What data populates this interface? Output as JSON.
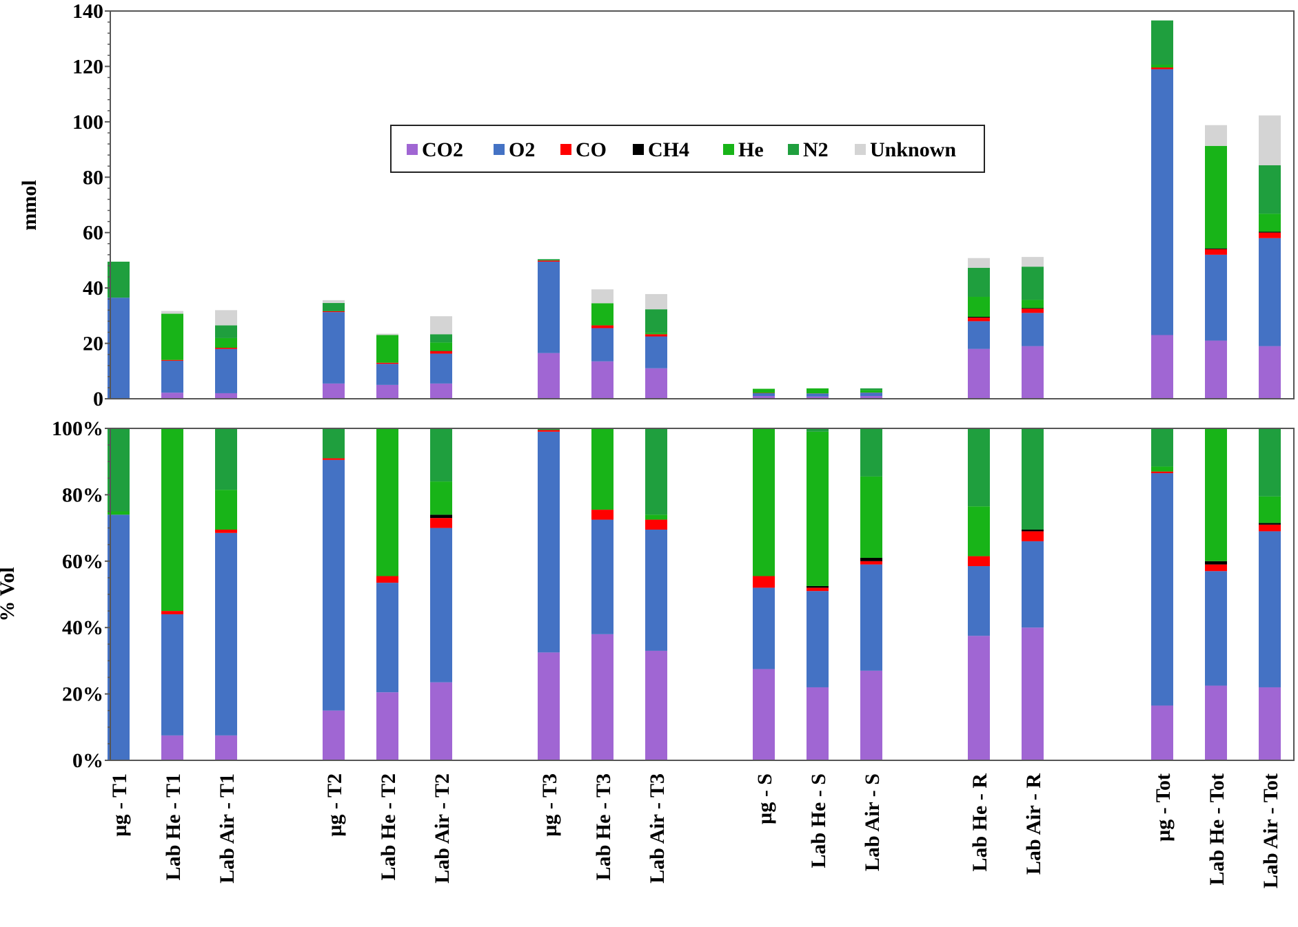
{
  "chart_data": [
    {
      "type": "bar",
      "stacked": true,
      "ylabel": "mmol",
      "ylim": [
        0,
        140
      ],
      "yticks": [
        "0",
        "20",
        "40",
        "60",
        "80",
        "100",
        "120",
        "140"
      ],
      "categories": [
        "µg  - T1",
        "Lab He  - T1",
        "Lab Air  - T1",
        "µg  - T2",
        "Lab He  - T2",
        "Lab Air  - T2",
        "µg  - T3",
        "Lab He  - T3",
        "Lab Air  - T3",
        "µg  - S",
        "Lab He  - S",
        "Lab Air  - S",
        "Lab He  - R",
        "Lab Air  - R",
        "µg - Tot",
        "Lab He - Tot",
        "Lab Air - Tot"
      ],
      "legend": {
        "position": "top-center"
      },
      "series": [
        {
          "name": "CO2",
          "color": "#a066d3",
          "values": [
            0,
            2.2,
            2,
            5.5,
            5,
            5.5,
            16.5,
            13.5,
            11,
            1,
            0.8,
            1,
            18,
            19,
            23,
            21,
            19
          ]
        },
        {
          "name": "O2",
          "color": "#4472c4",
          "values": [
            36.5,
            11.5,
            16,
            25.8,
            7.6,
            10.8,
            33,
            12,
            11.5,
            1,
            1.1,
            1.2,
            10,
            12,
            96,
            31,
            39
          ]
        },
        {
          "name": "CO",
          "color": "#ff0000",
          "values": [
            0,
            0.3,
            0.4,
            0.3,
            0.4,
            0.9,
            0.4,
            1,
            0.8,
            0.1,
            0.05,
            0.05,
            1.3,
            1.5,
            0.6,
            2,
            2
          ]
        },
        {
          "name": "CH4",
          "color": "#000000",
          "values": [
            0,
            0,
            0,
            0,
            0,
            0.1,
            0,
            0,
            0,
            0,
            0,
            0,
            0.3,
            0.2,
            0,
            0.3,
            0.3
          ]
        },
        {
          "name": "He",
          "color": "#18b418",
          "values": [
            0,
            16.7,
            3.5,
            0,
            10,
            3,
            0,
            8,
            0.5,
            1.5,
            1.8,
            0.9,
            7.2,
            3,
            1,
            37,
            6.5
          ]
        },
        {
          "name": "N2",
          "color": "#1f9f3e",
          "values": [
            13,
            0,
            4.6,
            3,
            0,
            3,
            0.5,
            0,
            8.5,
            0,
            0,
            0.6,
            10.5,
            12,
            16,
            0,
            17.5
          ]
        },
        {
          "name": "Unknown",
          "color": "#d4d4d4",
          "values": [
            0,
            1,
            5.5,
            1,
            0.5,
            6.5,
            0,
            5,
            5.5,
            0,
            0,
            0,
            3.5,
            3.5,
            0,
            7.5,
            18
          ]
        }
      ]
    },
    {
      "type": "bar",
      "stacked": true,
      "ylabel": "% Vol",
      "ylim": [
        0,
        100
      ],
      "yticks": [
        "0%",
        "20%",
        "40%",
        "60%",
        "80%",
        "100%"
      ],
      "categories": [
        "µg  - T1",
        "Lab He  - T1",
        "Lab Air  - T1",
        "µg  - T2",
        "Lab He  - T2",
        "Lab Air  - T2",
        "µg  - T3",
        "Lab He  - T3",
        "Lab Air  - T3",
        "µg  - S",
        "Lab He  - S",
        "Lab Air  - S",
        "Lab He  - R",
        "Lab Air  - R",
        "µg - Tot",
        "Lab He - Tot",
        "Lab Air - Tot"
      ],
      "series": [
        {
          "name": "CO2",
          "color": "#a066d3",
          "values": [
            0,
            7.5,
            7.5,
            15,
            20.5,
            23.5,
            32.5,
            38,
            33,
            27.5,
            22,
            27,
            37.5,
            40,
            16.5,
            22.5,
            22
          ]
        },
        {
          "name": "O2",
          "color": "#4472c4",
          "values": [
            74,
            36.5,
            61,
            75.5,
            33,
            46.5,
            66.5,
            34.5,
            36.5,
            24.5,
            29,
            32,
            21,
            26,
            70,
            34.5,
            47
          ]
        },
        {
          "name": "CO",
          "color": "#ff0000",
          "values": [
            0,
            1,
            1,
            0.5,
            2,
            3,
            0.5,
            3,
            3,
            3.5,
            1,
            1,
            3,
            3,
            0.5,
            2,
            2
          ]
        },
        {
          "name": "CH4",
          "color": "#000000",
          "values": [
            0,
            0,
            0,
            0,
            0,
            1,
            0,
            0,
            0,
            0,
            0.5,
            1,
            0,
            0.5,
            0,
            1,
            0.5
          ]
        },
        {
          "name": "He",
          "color": "#18b418",
          "values": [
            1,
            55,
            12,
            0,
            44.5,
            10,
            0,
            24.5,
            1.5,
            44.5,
            46.5,
            24.5,
            15,
            0,
            1.5,
            40,
            8
          ]
        },
        {
          "name": "N2",
          "color": "#1f9f3e",
          "values": [
            25,
            0,
            18.5,
            9,
            0,
            16,
            0.5,
            0,
            26,
            0,
            1,
            14.5,
            23.5,
            30.5,
            11.5,
            0,
            20.5
          ]
        }
      ]
    }
  ]
}
